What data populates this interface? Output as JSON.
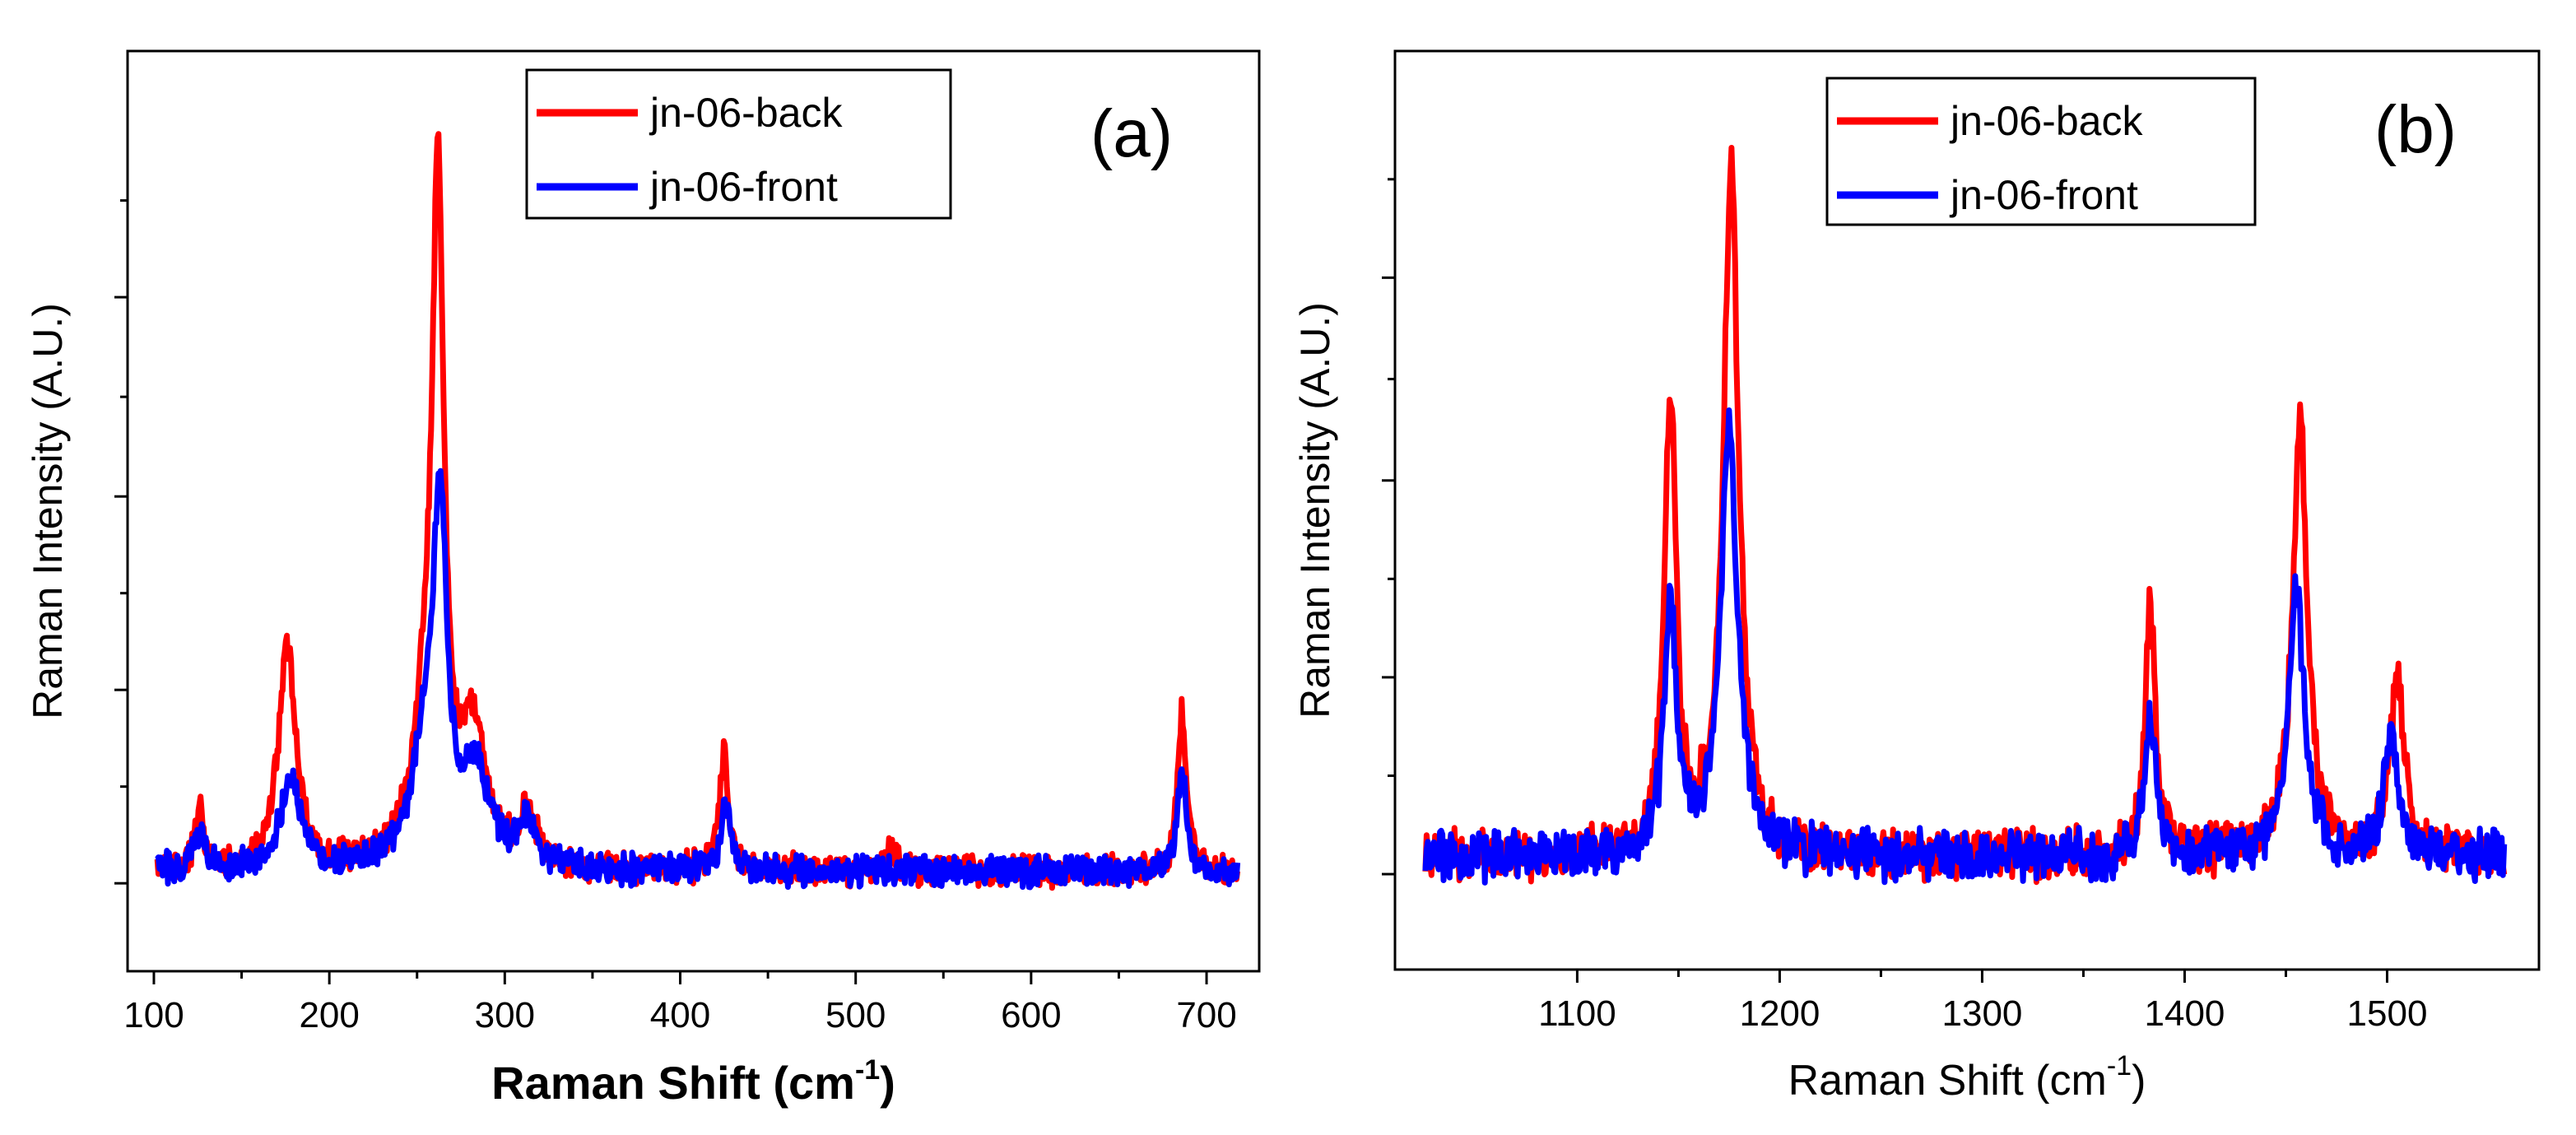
{
  "colors": {
    "back": "#ff0000",
    "front": "#0000ff",
    "axis": "#000000",
    "background": "#ffffff"
  },
  "chart_data": [
    {
      "type": "line",
      "panel_label": "(a)",
      "xlabel": "Raman Shift (cm",
      "xlabel_sup": "-1",
      "xlabel_end": ")",
      "ylabel": "Raman Intensity (A.U.)",
      "xlim": [
        85,
        730
      ],
      "ylim": [
        -0.15,
        1.42
      ],
      "x_ticks": [
        100,
        200,
        300,
        400,
        500,
        600,
        700
      ],
      "x_tick_labels": [
        "100",
        "200",
        "300",
        "400",
        "500",
        "600",
        "700"
      ],
      "y_ticks": [
        0,
        0.33,
        0.66,
        1.0
      ],
      "y_ticks_labeled": false,
      "legend_position": "top-center",
      "legend": [
        "jn-06-back",
        "jn-06-front"
      ],
      "x_range": [
        102,
        718
      ],
      "baseline": 0.02,
      "noise": 0.022,
      "series": [
        {
          "name": "jn-06-back",
          "color": "#ff0000",
          "peaks": [
            [
              126,
              0.1,
              3
            ],
            [
              176,
              0.38,
              6
            ],
            [
              262,
              1.07,
              4
            ],
            [
              255,
              0.22,
              9
            ],
            [
              282,
              0.22,
              9
            ],
            [
              313,
              0.1,
              5
            ],
            [
              425,
              0.2,
              3
            ],
            [
              520,
              0.04,
              4
            ],
            [
              686,
              0.27,
              3
            ]
          ]
        },
        {
          "name": "jn-06-front",
          "color": "#0000ff",
          "peaks": [
            [
              126,
              0.06,
              5
            ],
            [
              178,
              0.16,
              7
            ],
            [
              263,
              0.58,
              5
            ],
            [
              254,
              0.16,
              9
            ],
            [
              284,
              0.15,
              9
            ],
            [
              313,
              0.08,
              5
            ],
            [
              426,
              0.12,
              3
            ],
            [
              686,
              0.18,
              3
            ]
          ]
        }
      ]
    },
    {
      "type": "line",
      "panel_label": "(b)",
      "xlabel": "Raman Shift (cm",
      "xlabel_sup": "-1",
      "xlabel_end": ")",
      "ylabel": "Raman Intensity (A.U.)",
      "xlim": [
        1010,
        1575
      ],
      "ylim": [
        -0.16,
        1.38
      ],
      "x_ticks": [
        1100,
        1200,
        1300,
        1400,
        1500
      ],
      "x_tick_labels": [
        "1100",
        "1200",
        "1300",
        "1400",
        "1500"
      ],
      "y_ticks": [
        0,
        0.33,
        0.66,
        1.0
      ],
      "y_ticks_labeled": false,
      "legend_position": "top-center",
      "legend": [
        "jn-06-back",
        "jn-06-front"
      ],
      "x_range": [
        1025,
        1558
      ],
      "baseline": 0.03,
      "noise": 0.035,
      "series": [
        {
          "name": "jn-06-back",
          "color": "#ff0000",
          "peaks": [
            [
              1146,
              0.77,
              3.5
            ],
            [
              1176,
              1.15,
              4.5
            ],
            [
              1383,
              0.42,
              3
            ],
            [
              1457,
              0.72,
              4.5
            ],
            [
              1505,
              0.3,
              4
            ]
          ]
        },
        {
          "name": "jn-06-front",
          "color": "#0000ff",
          "peaks": [
            [
              1146,
              0.43,
              3.5
            ],
            [
              1175,
              0.72,
              5
            ],
            [
              1383,
              0.25,
              3
            ],
            [
              1455,
              0.45,
              4.5
            ],
            [
              1502,
              0.21,
              4
            ]
          ]
        }
      ]
    }
  ]
}
